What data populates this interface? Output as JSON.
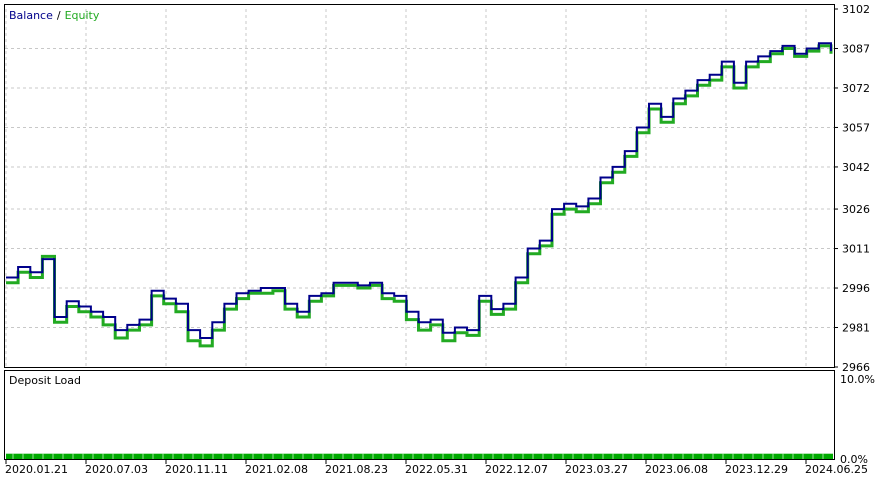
{
  "chart_data": [
    {
      "type": "line",
      "legend": {
        "balance": "Balance",
        "separator": "/",
        "equity": "Equity"
      },
      "colors": {
        "balance": "#00008b",
        "equity": "#22aa22"
      },
      "ylim": [
        2966,
        3102
      ],
      "y_ticks": [
        "3102",
        "3087",
        "3072",
        "3057",
        "3042",
        "3026",
        "3011",
        "2996",
        "2981",
        "2966"
      ],
      "x_ticks": [
        "2020.01.21",
        "2020.07.03",
        "2020.11.11",
        "2021.02.08",
        "2021.08.23",
        "2022.05.31",
        "2022.12.07",
        "2023.03.27",
        "2023.06.08",
        "2023.12.29",
        "2024.06.25"
      ],
      "grid": true,
      "series": [
        {
          "name": "Balance",
          "values": [
            3000,
            3004,
            3002,
            3007,
            2985,
            2991,
            2989,
            2987,
            2985,
            2980,
            2982,
            2984,
            2995,
            2992,
            2990,
            2980,
            2977,
            2983,
            2990,
            2994,
            2995,
            2996,
            2996,
            2990,
            2987,
            2993,
            2994,
            2998,
            2998,
            2997,
            2998,
            2994,
            2993,
            2987,
            2983,
            2984,
            2979,
            2981,
            2980,
            2993,
            2988,
            2990,
            3000,
            3011,
            3014,
            3026,
            3028,
            3027,
            3030,
            3038,
            3042,
            3048,
            3057,
            3066,
            3061,
            3068,
            3071,
            3075,
            3077,
            3082,
            3074,
            3082,
            3084,
            3086,
            3088,
            3085,
            3087,
            3089,
            3086
          ]
        },
        {
          "name": "Equity",
          "values": [
            2998,
            3002,
            3000,
            3008,
            2983,
            2989,
            2987,
            2985,
            2982,
            2977,
            2980,
            2982,
            2993,
            2990,
            2987,
            2976,
            2974,
            2980,
            2988,
            2992,
            2994,
            2994,
            2995,
            2988,
            2985,
            2991,
            2993,
            2997,
            2997,
            2996,
            2997,
            2992,
            2991,
            2984,
            2980,
            2982,
            2976,
            2979,
            2978,
            2991,
            2986,
            2988,
            2998,
            3009,
            3012,
            3024,
            3026,
            3025,
            3028,
            3036,
            3040,
            3046,
            3055,
            3064,
            3059,
            3066,
            3069,
            3073,
            3075,
            3080,
            3072,
            3080,
            3082,
            3085,
            3087,
            3084,
            3086,
            3088,
            3085
          ]
        }
      ]
    },
    {
      "type": "bar",
      "title": "Deposit Load",
      "ylim": [
        0,
        10
      ],
      "y_ticks": [
        "10.0%",
        "0.0%"
      ],
      "color": "#00aa00",
      "value": 0.6
    }
  ]
}
